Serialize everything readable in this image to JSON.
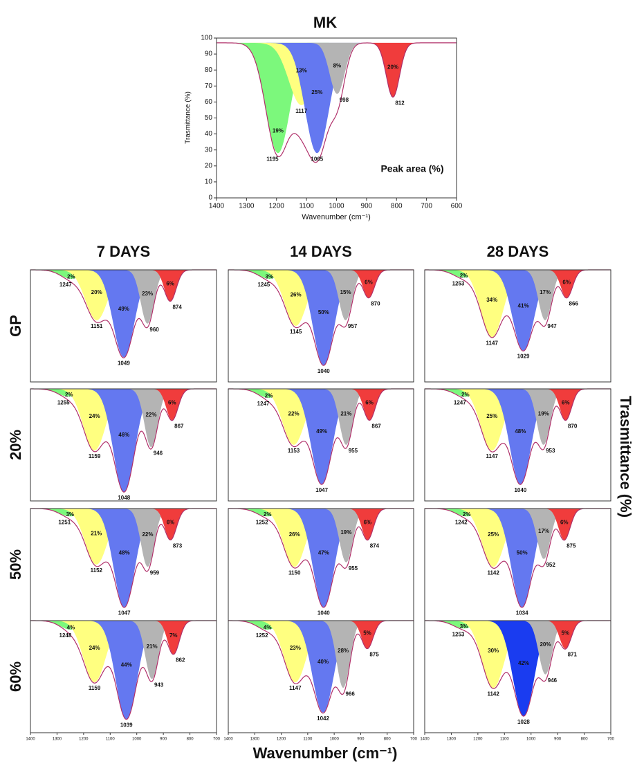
{
  "chart_data": [
    {
      "type": "peak-fit",
      "title": "MK",
      "x_label": "Wavenumber (cm⁻¹)",
      "y_label": "Trasmittance (%)",
      "annotation": "Peak area (%)",
      "xlim": [
        1400,
        600
      ],
      "ylim": [
        0,
        100
      ],
      "xticks": [
        1400,
        1300,
        1200,
        1100,
        1000,
        900,
        800,
        700,
        600
      ],
      "yticks": [
        0,
        10,
        20,
        30,
        40,
        50,
        60,
        70,
        80,
        90,
        100
      ],
      "baseline": 97,
      "colors": [
        "#7cf87c",
        "#ffff80",
        "#6478f0",
        "#b4b4b4",
        "#f03c3c"
      ],
      "centers": [
        1195,
        1117,
        1065,
        998,
        812
      ],
      "areas": [
        19,
        13,
        25,
        8,
        20
      ],
      "area_labels": [
        "19%",
        "13%",
        "25%",
        "8%",
        "20%"
      ],
      "mins": [
        28,
        58,
        28,
        65,
        63
      ]
    },
    {
      "type": "peak-grid",
      "columns": [
        "7 DAYS",
        "14 DAYS",
        "28 DAYS"
      ],
      "rows": [
        "GP",
        "20%",
        "50%",
        "60%"
      ],
      "x_label": "Wavenumber (cm⁻¹)",
      "y_label": "Trasmittance (%)",
      "xlim": [
        1400,
        700
      ],
      "ylim": [
        0,
        100
      ],
      "xticks": [
        1400,
        1300,
        1200,
        1100,
        1000,
        900,
        800,
        700
      ],
      "baseline": 100,
      "colors": [
        "#7cf87c",
        "#ffff80",
        "#6478f0",
        "#b4b4b4",
        "#f03c3c"
      ],
      "panels": [
        [
          {
            "centers": [
              1247,
              1151,
              1049,
              960,
              874
            ],
            "areas": [
              2,
              20,
              49,
              23,
              6
            ],
            "area_labels": [
              "2%",
              "20%",
              "49%",
              "23%",
              "6%"
            ],
            "mins": [
              92,
              55,
              22,
              52,
              72
            ]
          },
          {
            "centers": [
              1245,
              1145,
              1040,
              957,
              870
            ],
            "areas": [
              3,
              26,
              50,
              15,
              6
            ],
            "area_labels": [
              "3%",
              "26%",
              "50%",
              "15%",
              "6%"
            ],
            "mins": [
              92,
              50,
              15,
              55,
              75
            ]
          },
          {
            "centers": [
              1253,
              1147,
              1029,
              947,
              866
            ],
            "areas": [
              2,
              34,
              41,
              17,
              6
            ],
            "area_labels": [
              "2%",
              "34%",
              "41%",
              "17%",
              "6%"
            ],
            "mins": [
              93,
              40,
              28,
              55,
              75
            ]
          }
        ],
        [
          {
            "centers": [
              1255,
              1159,
              1048,
              946,
              867
            ],
            "areas": [
              2,
              24,
              46,
              22,
              6
            ],
            "area_labels": [
              "2%",
              "24%",
              "46%",
              "22%",
              "6%"
            ],
            "mins": [
              93,
              45,
              8,
              48,
              72
            ]
          },
          {
            "centers": [
              1247,
              1153,
              1047,
              955,
              867
            ],
            "areas": [
              2,
              22,
              49,
              21,
              6
            ],
            "area_labels": [
              "2%",
              "22%",
              "49%",
              "21%",
              "6%"
            ],
            "mins": [
              92,
              50,
              15,
              50,
              72
            ]
          },
          {
            "centers": [
              1247,
              1147,
              1040,
              953,
              870
            ],
            "areas": [
              2,
              25,
              48,
              19,
              6
            ],
            "area_labels": [
              "2%",
              "25%",
              "48%",
              "19%",
              "6%"
            ],
            "mins": [
              93,
              45,
              15,
              50,
              72
            ]
          }
        ],
        [
          {
            "centers": [
              1251,
              1152,
              1047,
              959,
              873
            ],
            "areas": [
              3,
              21,
              48,
              22,
              6
            ],
            "area_labels": [
              "3%",
              "21%",
              "48%",
              "22%",
              "6%"
            ],
            "mins": [
              93,
              50,
              12,
              48,
              72
            ]
          },
          {
            "centers": [
              1252,
              1150,
              1040,
              955,
              874
            ],
            "areas": [
              2,
              26,
              47,
              19,
              6
            ],
            "area_labels": [
              "2%",
              "26%",
              "47%",
              "19%",
              "6%"
            ],
            "mins": [
              93,
              48,
              12,
              52,
              72
            ]
          },
          {
            "centers": [
              1242,
              1142,
              1034,
              952,
              875
            ],
            "areas": [
              2,
              25,
              50,
              17,
              6
            ],
            "area_labels": [
              "2%",
              "25%",
              "50%",
              "17%",
              "6%"
            ],
            "mins": [
              93,
              48,
              12,
              55,
              72
            ]
          }
        ],
        [
          {
            "centers": [
              1248,
              1159,
              1039,
              943,
              862
            ],
            "areas": [
              4,
              24,
              44,
              21,
              7
            ],
            "area_labels": [
              "4%",
              "24%",
              "44%",
              "21%",
              "7%"
            ],
            "mins": [
              92,
              45,
              12,
              48,
              70
            ]
          },
          {
            "centers": [
              1252,
              1147,
              1042,
              966,
              875
            ],
            "areas": [
              4,
              23,
              40,
              28,
              5
            ],
            "area_labels": [
              "4%",
              "23%",
              "40%",
              "28%",
              "5%"
            ],
            "mins": [
              92,
              45,
              18,
              40,
              75
            ]
          },
          {
            "centers": [
              1253,
              1142,
              1028,
              946,
              871
            ],
            "areas": [
              3,
              30,
              42,
              20,
              5
            ],
            "area_labels": [
              "3%",
              "30%",
              "42%",
              "20%",
              "5%"
            ],
            "mins": [
              93,
              40,
              15,
              52,
              75
            ],
            "colors": [
              "#7cf87c",
              "#ffff80",
              "#1a3cf0",
              "#b4b4b4",
              "#f03c3c"
            ]
          }
        ]
      ]
    }
  ]
}
